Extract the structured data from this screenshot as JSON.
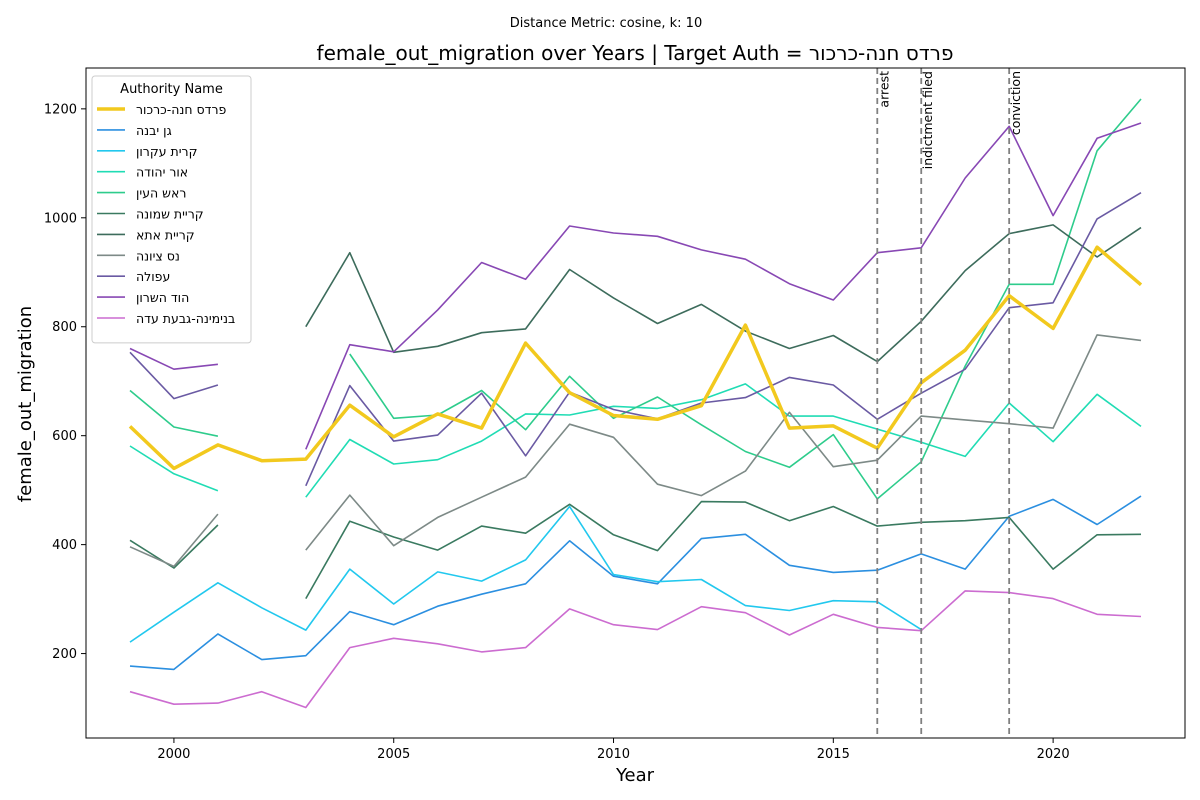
{
  "chart_data": {
    "type": "line",
    "suptitle": "Distance Metric: cosine, k: 10",
    "title": "female_out_migration over Years | Target Auth = פרדס חנה-כרכור",
    "xlabel": "Year",
    "ylabel": "female_out_migration",
    "xlim": [
      1998,
      2023
    ],
    "ylim": [
      45,
      1275
    ],
    "xticks": [
      2000,
      2005,
      2010,
      2015,
      2020
    ],
    "yticks": [
      200,
      400,
      600,
      800,
      1000,
      1200
    ],
    "grid": false,
    "legend": {
      "title": "Authority Name",
      "placement": "upper-left"
    },
    "x": [
      1999,
      2000,
      2001,
      2002,
      2003,
      2004,
      2005,
      2006,
      2007,
      2008,
      2009,
      2010,
      2011,
      2012,
      2013,
      2014,
      2015,
      2016,
      2017,
      2018,
      2019,
      2020,
      2021,
      2022
    ],
    "events": [
      {
        "x": 2016,
        "label": "arrest"
      },
      {
        "x": 2017,
        "label": "indictment filed"
      },
      {
        "x": 2019,
        "label": "conviction"
      }
    ],
    "series": [
      {
        "name": "פרדס חנה-כרכור",
        "color": "#f2c91e",
        "target": true,
        "values": [
          617,
          540,
          583,
          554,
          557,
          656,
          598,
          640,
          614,
          770,
          679,
          637,
          630,
          655,
          803,
          614,
          618,
          577,
          697,
          757,
          857,
          797,
          946,
          877
        ]
      },
      {
        "name": "גן יבנה",
        "color": "#2b8fe0",
        "values": [
          177,
          171,
          236,
          189,
          196,
          277,
          253,
          287,
          309,
          328,
          407,
          342,
          328,
          411,
          419,
          362,
          349,
          353,
          383,
          355,
          452,
          483,
          437,
          489
        ]
      },
      {
        "name": "קרית עקרון",
        "color": "#22c8ee",
        "values": [
          221,
          276,
          330,
          284,
          243,
          355,
          291,
          350,
          333,
          372,
          470,
          345,
          332,
          336,
          288,
          279,
          297,
          295,
          244,
          null,
          null,
          null,
          null,
          null
        ]
      },
      {
        "name": "אור יהודה",
        "color": "#20dcb4",
        "values": [
          581,
          530,
          499,
          null,
          487,
          593,
          548,
          556,
          590,
          640,
          638,
          654,
          650,
          666,
          695,
          636,
          636,
          612,
          588,
          562,
          660,
          589,
          676,
          617
        ]
      },
      {
        "name": "ראש העין",
        "color": "#2ecc8c",
        "values": [
          683,
          616,
          599,
          null,
          null,
          750,
          632,
          638,
          683,
          611,
          709,
          632,
          671,
          620,
          571,
          542,
          602,
          484,
          552,
          728,
          878,
          878,
          1123,
          1218
        ]
      },
      {
        "name": "קריית שמונה",
        "color": "#3a7a60",
        "values": [
          408,
          357,
          436,
          null,
          301,
          443,
          414,
          390,
          434,
          421,
          474,
          418,
          389,
          479,
          478,
          444,
          470,
          434,
          441,
          444,
          450,
          355,
          418,
          419
        ]
      },
      {
        "name": "קריית אתא",
        "color": "#3d6c5c",
        "values": [
          null,
          null,
          null,
          null,
          800,
          936,
          753,
          764,
          789,
          796,
          905,
          853,
          806,
          841,
          792,
          760,
          784,
          736,
          810,
          903,
          971,
          987,
          928,
          982
        ]
      },
      {
        "name": "נס ציונה",
        "color": "#7d8a87",
        "values": [
          396,
          360,
          456,
          null,
          390,
          491,
          398,
          450,
          487,
          524,
          621,
          597,
          511,
          490,
          535,
          643,
          543,
          555,
          636,
          629,
          622,
          614,
          785,
          775
        ]
      },
      {
        "name": "עפולה",
        "color": "#6a5aa3",
        "values": [
          753,
          668,
          693,
          null,
          508,
          692,
          590,
          601,
          678,
          563,
          680,
          648,
          631,
          660,
          670,
          707,
          693,
          630,
          678,
          722,
          835,
          844,
          998,
          1046
        ]
      },
      {
        "name": "הוד השרון",
        "color": "#8848b4",
        "values": [
          760,
          722,
          731,
          null,
          575,
          767,
          754,
          831,
          918,
          887,
          985,
          972,
          966,
          941,
          924,
          879,
          849,
          936,
          945,
          1073,
          1168,
          1004,
          1146,
          1174
        ]
      },
      {
        "name": "בנימינה-גבעת עדה",
        "color": "#cc6cd0",
        "values": [
          130,
          107,
          109,
          130,
          101,
          211,
          228,
          218,
          203,
          211,
          282,
          253,
          244,
          286,
          275,
          234,
          272,
          248,
          242,
          315,
          312,
          301,
          272,
          268
        ]
      }
    ]
  }
}
